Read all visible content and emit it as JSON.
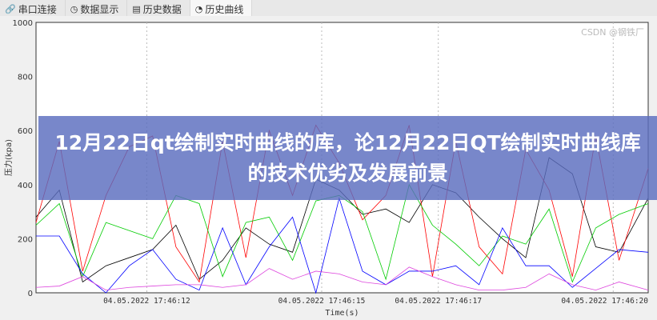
{
  "tabs": [
    {
      "label": "串口连接",
      "icon": "link-icon"
    },
    {
      "label": "数据显示",
      "icon": "gauge-icon"
    },
    {
      "label": "历史数据",
      "icon": "document-icon"
    },
    {
      "label": "历史曲线",
      "icon": "history-clock-icon",
      "active": true
    }
  ],
  "banner": {
    "title": "12月22日qt绘制实时曲线的库，论12月22日QT绘制实时曲线库的技术优劣及发展前景"
  },
  "watermark": "CSDN @钢铁厂",
  "chart_data": {
    "type": "line",
    "xlabel": "Time(s)",
    "ylabel": "压力(kpa)",
    "ylim": [
      0,
      1000
    ],
    "xlim": [
      10.1,
      20.6
    ],
    "yticks": [
      0,
      200,
      400,
      600,
      800,
      1000
    ],
    "xticks": [
      {
        "value": 12,
        "label": "04.05.2022 17:46:12"
      },
      {
        "value": 15,
        "label": "04.05.2022 17:46:15"
      },
      {
        "value": 17,
        "label": "04.05.2022 17:46:17"
      },
      {
        "value": 20,
        "label": "04.05.2022 17:46:20"
      }
    ],
    "grid": true,
    "x": [
      10.1,
      10.5,
      10.9,
      11.3,
      11.7,
      12.1,
      12.5,
      12.9,
      13.3,
      13.7,
      14.1,
      14.5,
      14.9,
      15.3,
      15.7,
      16.1,
      16.5,
      16.9,
      17.3,
      17.7,
      18.1,
      18.5,
      18.9,
      19.3,
      19.7,
      20.1,
      20.6
    ],
    "series": [
      {
        "color": "#000000",
        "values": [
          280,
          380,
          40,
          100,
          130,
          160,
          250,
          50,
          120,
          240,
          180,
          150,
          420,
          380,
          290,
          310,
          260,
          400,
          370,
          280,
          200,
          130,
          500,
          440,
          170,
          150,
          350
        ]
      },
      {
        "color": "#ff0000",
        "values": [
          260,
          560,
          80,
          360,
          540,
          580,
          170,
          40,
          560,
          130,
          600,
          360,
          620,
          480,
          270,
          360,
          620,
          60,
          560,
          170,
          70,
          530,
          380,
          60,
          580,
          120,
          460
        ]
      },
      {
        "color": "#00cc00",
        "values": [
          250,
          330,
          60,
          260,
          230,
          200,
          360,
          330,
          60,
          260,
          280,
          120,
          340,
          360,
          300,
          50,
          400,
          250,
          180,
          100,
          210,
          180,
          310,
          40,
          240,
          290,
          330
        ]
      },
      {
        "color": "#0000ff",
        "values": [
          210,
          210,
          70,
          0,
          100,
          160,
          50,
          10,
          240,
          30,
          170,
          280,
          0,
          350,
          80,
          30,
          80,
          80,
          100,
          30,
          240,
          100,
          100,
          20,
          90,
          160,
          150
        ]
      },
      {
        "color": "#dd44dd",
        "values": [
          20,
          25,
          60,
          10,
          20,
          25,
          30,
          30,
          20,
          30,
          90,
          50,
          80,
          70,
          40,
          30,
          95,
          60,
          30,
          10,
          10,
          20,
          70,
          30,
          10,
          40,
          10
        ]
      }
    ]
  }
}
